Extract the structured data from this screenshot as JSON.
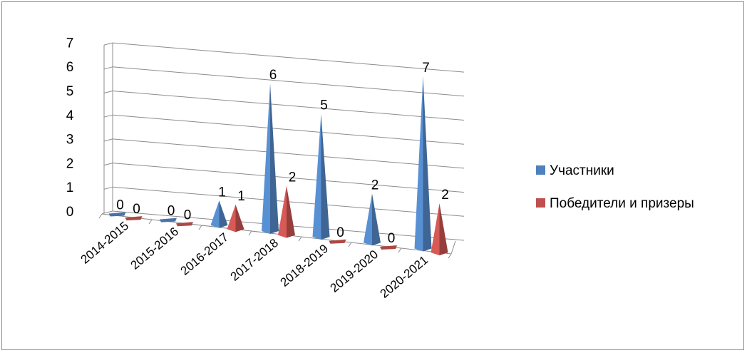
{
  "chart_data": {
    "type": "bar",
    "title": "",
    "xlabel": "",
    "ylabel": "",
    "ylim": [
      0,
      7
    ],
    "y_ticks": [
      "0",
      "1",
      "2",
      "3",
      "4",
      "5",
      "6",
      "7"
    ],
    "categories": [
      "2014-2015",
      "2015-2016",
      "2016-2017",
      "2017-2018",
      "2018-2019",
      "2019-2020",
      "2020-2021"
    ],
    "series": [
      {
        "name": "Участники",
        "values": [
          0,
          0,
          1,
          6,
          5,
          2,
          7
        ],
        "color": "#4f81bd"
      },
      {
        "name": "Победители и призеры",
        "values": [
          0,
          0,
          1,
          2,
          0,
          0,
          2
        ],
        "color": "#c0504d"
      }
    ],
    "grid": true,
    "legend": "right",
    "style": "3d-pyramid"
  }
}
